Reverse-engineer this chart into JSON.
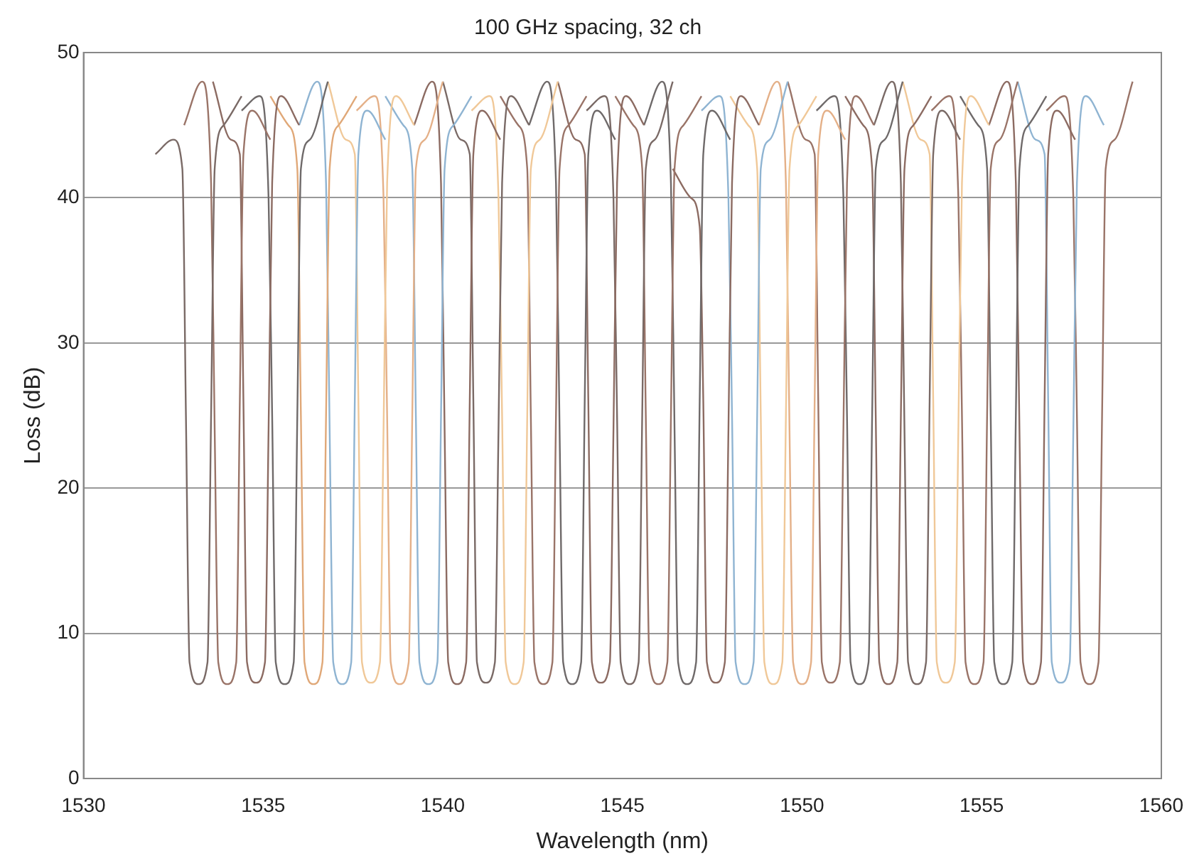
{
  "chart_data": {
    "type": "line",
    "title": "100 GHz spacing, 32 ch",
    "xlabel": "Wavelength (nm)",
    "ylabel": "Loss (dB)",
    "xlim": [
      1530,
      1560
    ],
    "xticks": [
      1530,
      1535,
      1540,
      1545,
      1550,
      1555,
      1560
    ],
    "ylim": [
      0,
      50
    ],
    "yticks": [
      0,
      10,
      20,
      30,
      40,
      50
    ],
    "grid": "y",
    "legend": false,
    "marker": "none",
    "line_style": "solid",
    "series": [
      {
        "color": "#7a6a66",
        "x": [
          1532.0,
          1532.5,
          1532.75,
          1532.85,
          1532.95,
          1533.2,
          1533.45,
          1533.55,
          1533.65,
          1533.9,
          1534.4
        ],
        "values": [
          43,
          44,
          42,
          25,
          8,
          6.5,
          8,
          25,
          42,
          45,
          47
        ]
      },
      {
        "color": "#9a7468",
        "x": [
          1532.8,
          1533.3,
          1533.55,
          1533.65,
          1533.75,
          1534.0,
          1534.25,
          1534.35,
          1534.45,
          1534.7,
          1535.2
        ],
        "values": [
          45,
          48,
          41,
          24,
          8,
          6.5,
          8,
          26,
          43,
          46,
          44
        ]
      },
      {
        "color": "#8c6b62",
        "x": [
          1533.6,
          1534.1,
          1534.35,
          1534.45,
          1534.55,
          1534.8,
          1535.05,
          1535.15,
          1535.25,
          1535.5,
          1536.0
        ],
        "values": [
          48,
          44,
          43,
          26,
          8,
          6.6,
          8,
          24,
          41,
          47,
          45
        ]
      },
      {
        "color": "#6f6a6a",
        "x": [
          1534.4,
          1534.9,
          1535.15,
          1535.25,
          1535.35,
          1535.6,
          1535.85,
          1535.95,
          1536.05,
          1536.3,
          1536.8
        ],
        "values": [
          46,
          47,
          40,
          25,
          8,
          6.5,
          8,
          25,
          42,
          44,
          48
        ]
      },
      {
        "color": "#e0a878",
        "x": [
          1535.2,
          1535.7,
          1535.95,
          1536.05,
          1536.15,
          1536.4,
          1536.65,
          1536.75,
          1536.85,
          1537.1,
          1537.6
        ],
        "values": [
          47,
          45,
          42,
          25,
          8,
          6.5,
          8,
          25,
          42,
          45,
          47
        ]
      },
      {
        "color": "#8fb4d2",
        "x": [
          1536.0,
          1536.5,
          1536.75,
          1536.85,
          1536.95,
          1537.2,
          1537.45,
          1537.55,
          1537.65,
          1537.9,
          1538.4
        ],
        "values": [
          45,
          48,
          41,
          24,
          8,
          6.5,
          8,
          26,
          43,
          46,
          44
        ]
      },
      {
        "color": "#f0c898",
        "x": [
          1536.8,
          1537.3,
          1537.55,
          1537.65,
          1537.75,
          1538.0,
          1538.25,
          1538.35,
          1538.45,
          1538.7,
          1539.2
        ],
        "values": [
          48,
          44,
          43,
          26,
          8,
          6.6,
          8,
          24,
          41,
          47,
          45
        ]
      },
      {
        "color": "#e4b088",
        "x": [
          1537.6,
          1538.1,
          1538.35,
          1538.45,
          1538.55,
          1538.8,
          1539.05,
          1539.15,
          1539.25,
          1539.5,
          1540.0
        ],
        "values": [
          46,
          47,
          40,
          25,
          8,
          6.5,
          8,
          25,
          42,
          44,
          48
        ]
      },
      {
        "color": "#8fb4d2",
        "x": [
          1538.4,
          1538.9,
          1539.15,
          1539.25,
          1539.35,
          1539.6,
          1539.85,
          1539.95,
          1540.05,
          1540.3,
          1540.8
        ],
        "values": [
          47,
          45,
          42,
          25,
          8,
          6.5,
          8,
          25,
          42,
          45,
          47
        ]
      },
      {
        "color": "#8c6b62",
        "x": [
          1539.2,
          1539.7,
          1539.95,
          1540.05,
          1540.15,
          1540.4,
          1540.65,
          1540.75,
          1540.85,
          1541.1,
          1541.6
        ],
        "values": [
          45,
          48,
          41,
          24,
          8,
          6.5,
          8,
          26,
          43,
          46,
          44
        ]
      },
      {
        "color": "#7a6a66",
        "x": [
          1540.0,
          1540.5,
          1540.75,
          1540.85,
          1540.95,
          1541.2,
          1541.45,
          1541.55,
          1541.65,
          1541.9,
          1542.4
        ],
        "values": [
          48,
          44,
          43,
          26,
          8,
          6.6,
          8,
          24,
          41,
          47,
          45
        ]
      },
      {
        "color": "#f0c898",
        "x": [
          1540.8,
          1541.3,
          1541.55,
          1541.65,
          1541.75,
          1542.0,
          1542.25,
          1542.35,
          1542.45,
          1542.7,
          1543.2
        ],
        "values": [
          46,
          47,
          40,
          25,
          8,
          6.5,
          8,
          25,
          42,
          44,
          48
        ]
      },
      {
        "color": "#9a7468",
        "x": [
          1541.6,
          1542.1,
          1542.35,
          1542.45,
          1542.55,
          1542.8,
          1543.05,
          1543.15,
          1543.25,
          1543.5,
          1544.0
        ],
        "values": [
          47,
          45,
          42,
          25,
          8,
          6.5,
          8,
          25,
          42,
          45,
          47
        ]
      },
      {
        "color": "#6f6a6a",
        "x": [
          1542.4,
          1542.9,
          1543.15,
          1543.25,
          1543.35,
          1543.6,
          1543.85,
          1543.95,
          1544.05,
          1544.3,
          1544.8
        ],
        "values": [
          45,
          48,
          41,
          24,
          8,
          6.5,
          8,
          26,
          43,
          46,
          44
        ]
      },
      {
        "color": "#8c6b62",
        "x": [
          1543.2,
          1543.7,
          1543.95,
          1544.05,
          1544.15,
          1544.4,
          1544.65,
          1544.75,
          1544.85,
          1545.1,
          1545.6
        ],
        "values": [
          48,
          44,
          43,
          26,
          8,
          6.6,
          8,
          24,
          41,
          47,
          45
        ]
      },
      {
        "color": "#7a6a66",
        "x": [
          1544.0,
          1544.5,
          1544.75,
          1544.85,
          1544.95,
          1545.2,
          1545.45,
          1545.55,
          1545.65,
          1545.9,
          1546.4
        ],
        "values": [
          46,
          47,
          40,
          25,
          8,
          6.5,
          8,
          25,
          42,
          44,
          48
        ]
      },
      {
        "color": "#9a7468",
        "x": [
          1544.8,
          1545.3,
          1545.55,
          1545.65,
          1545.75,
          1546.0,
          1546.25,
          1546.35,
          1546.45,
          1546.7,
          1547.2
        ],
        "values": [
          47,
          45,
          42,
          25,
          8,
          6.5,
          8,
          25,
          42,
          45,
          47
        ]
      },
      {
        "color": "#6f6a6a",
        "x": [
          1545.6,
          1546.1,
          1546.35,
          1546.45,
          1546.55,
          1546.8,
          1547.05,
          1547.15,
          1547.25,
          1547.5,
          1548.0
        ],
        "values": [
          45,
          48,
          41,
          24,
          8,
          6.5,
          8,
          26,
          43,
          46,
          44
        ]
      },
      {
        "color": "#8c6b62",
        "x": [
          1546.4,
          1546.9,
          1547.15,
          1547.25,
          1547.35,
          1547.6,
          1547.85,
          1547.95,
          1548.05,
          1548.3,
          1548.8
        ],
        "values": [
          42,
          40,
          38,
          26,
          8,
          6.6,
          8,
          24,
          41,
          47,
          45
        ]
      },
      {
        "color": "#8fb4d2",
        "x": [
          1547.2,
          1547.7,
          1547.95,
          1548.05,
          1548.15,
          1548.4,
          1548.65,
          1548.75,
          1548.85,
          1549.1,
          1549.6
        ],
        "values": [
          46,
          47,
          40,
          25,
          8,
          6.5,
          8,
          25,
          42,
          44,
          48
        ]
      },
      {
        "color": "#f0c898",
        "x": [
          1548.0,
          1548.5,
          1548.75,
          1548.85,
          1548.95,
          1549.2,
          1549.45,
          1549.55,
          1549.65,
          1549.9,
          1550.4
        ],
        "values": [
          47,
          45,
          42,
          25,
          8,
          6.5,
          8,
          25,
          42,
          45,
          47
        ]
      },
      {
        "color": "#e4b088",
        "x": [
          1548.8,
          1549.3,
          1549.55,
          1549.65,
          1549.75,
          1550.0,
          1550.25,
          1550.35,
          1550.45,
          1550.7,
          1551.2
        ],
        "values": [
          45,
          48,
          41,
          24,
          8,
          6.5,
          8,
          26,
          43,
          46,
          44
        ]
      },
      {
        "color": "#9a7468",
        "x": [
          1549.6,
          1550.1,
          1550.35,
          1550.45,
          1550.55,
          1550.8,
          1551.05,
          1551.15,
          1551.25,
          1551.5,
          1552.0
        ],
        "values": [
          48,
          44,
          43,
          26,
          8,
          6.6,
          8,
          24,
          41,
          47,
          45
        ]
      },
      {
        "color": "#6f6a6a",
        "x": [
          1550.4,
          1550.9,
          1551.15,
          1551.25,
          1551.35,
          1551.6,
          1551.85,
          1551.95,
          1552.05,
          1552.3,
          1552.8
        ],
        "values": [
          46,
          47,
          40,
          25,
          8,
          6.5,
          8,
          25,
          42,
          44,
          48
        ]
      },
      {
        "color": "#8c6b62",
        "x": [
          1551.2,
          1551.7,
          1551.95,
          1552.05,
          1552.15,
          1552.4,
          1552.65,
          1552.75,
          1552.85,
          1553.1,
          1553.6
        ],
        "values": [
          47,
          45,
          42,
          25,
          8,
          6.5,
          8,
          25,
          42,
          45,
          47
        ]
      },
      {
        "color": "#7a6a66",
        "x": [
          1552.0,
          1552.5,
          1552.75,
          1552.85,
          1552.95,
          1553.2,
          1553.45,
          1553.55,
          1553.65,
          1553.9,
          1554.4
        ],
        "values": [
          45,
          48,
          41,
          24,
          8,
          6.5,
          8,
          26,
          43,
          46,
          44
        ]
      },
      {
        "color": "#f0c898",
        "x": [
          1552.8,
          1553.3,
          1553.55,
          1553.65,
          1553.75,
          1554.0,
          1554.25,
          1554.35,
          1554.45,
          1554.7,
          1555.2
        ],
        "values": [
          48,
          44,
          43,
          26,
          8,
          6.6,
          8,
          24,
          41,
          47,
          45
        ]
      },
      {
        "color": "#9a7468",
        "x": [
          1553.6,
          1554.1,
          1554.35,
          1554.45,
          1554.55,
          1554.8,
          1555.05,
          1555.15,
          1555.25,
          1555.5,
          1556.0
        ],
        "values": [
          46,
          47,
          40,
          25,
          8,
          6.5,
          8,
          25,
          42,
          44,
          48
        ]
      },
      {
        "color": "#6f6a6a",
        "x": [
          1554.4,
          1554.9,
          1555.15,
          1555.25,
          1555.35,
          1555.6,
          1555.85,
          1555.95,
          1556.05,
          1556.3,
          1556.8
        ],
        "values": [
          47,
          45,
          42,
          25,
          8,
          6.5,
          8,
          25,
          42,
          45,
          47
        ]
      },
      {
        "color": "#8c6b62",
        "x": [
          1555.2,
          1555.7,
          1555.95,
          1556.05,
          1556.15,
          1556.4,
          1556.65,
          1556.75,
          1556.85,
          1557.1,
          1557.6
        ],
        "values": [
          45,
          48,
          41,
          24,
          8,
          6.5,
          8,
          26,
          43,
          46,
          44
        ]
      },
      {
        "color": "#8fb4d2",
        "x": [
          1556.0,
          1556.5,
          1556.75,
          1556.85,
          1556.95,
          1557.2,
          1557.45,
          1557.55,
          1557.65,
          1557.9,
          1558.4
        ],
        "values": [
          48,
          44,
          43,
          26,
          8,
          6.6,
          8,
          24,
          41,
          47,
          45
        ]
      },
      {
        "color": "#9a7468",
        "x": [
          1556.8,
          1557.3,
          1557.55,
          1557.65,
          1557.75,
          1558.0,
          1558.25,
          1558.35,
          1558.45,
          1558.7,
          1559.2
        ],
        "values": [
          46,
          47,
          40,
          25,
          8,
          6.5,
          8,
          25,
          42,
          44,
          48
        ]
      }
    ]
  }
}
